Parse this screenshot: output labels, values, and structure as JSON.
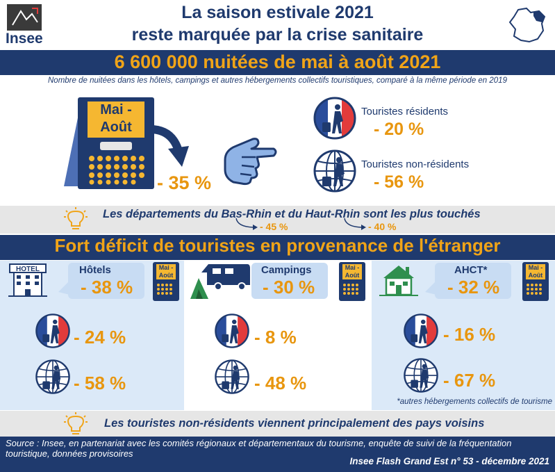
{
  "header": {
    "logo_text": "Insee",
    "title_line1": "La saison estivale 2021",
    "title_line2": "reste marquée par la crise sanitaire"
  },
  "banner": {
    "headline": "6 600 000 nuitées de mai à août 2021",
    "subtitle": "Nombre de nuitées dans les hôtels, campings et autres hébergements collectifs touristiques, comparé à la même période en 2019"
  },
  "overview": {
    "calendar_label_line1": "Mai -",
    "calendar_label_line2": "Août",
    "total_pct": "- 35 %",
    "residents_label": "Touristes résidents",
    "residents_pct": "- 20 %",
    "nonresidents_label": "Touristes non-résidents",
    "nonresidents_pct": "- 56 %"
  },
  "departments_band": {
    "text": "Les départements du Bas-Rhin et du Haut-Rhin sont les plus touchés",
    "bas_rhin_pct": "- 45 %",
    "haut_rhin_pct": "- 40 %"
  },
  "section": {
    "title": "Fort déficit de touristes en provenance de l'étranger"
  },
  "small_calendar": {
    "line1": "Mai -",
    "line2": "Août"
  },
  "panels": [
    {
      "title": "Hôtels",
      "icon_text": "HOTEL",
      "total_pct": "- 38 %",
      "residents_pct": "- 24 %",
      "nonresidents_pct": "- 58 %"
    },
    {
      "title": "Campings",
      "total_pct": "- 30 %",
      "residents_pct": "- 8 %",
      "nonresidents_pct": "- 48 %"
    },
    {
      "title": "AHCT*",
      "total_pct": "- 32 %",
      "residents_pct": "- 16 %",
      "nonresidents_pct": "- 67 %"
    }
  ],
  "footnote": "*autres hébergements collectifs de tourisme",
  "neighbours_band": {
    "text": "Les touristes non-résidents viennent principalement des pays voisins"
  },
  "footer": {
    "source": "Source : Insee, en partenariat avec les comités régionaux et départementaux du tourisme, enquête de suivi de la fréquentation touristique, données provisoires",
    "reference": "Insee Flash Grand Est n° 53 - décembre 2021"
  },
  "colors": {
    "navy": "#1f3a6e",
    "orange": "#e8960f",
    "light_blue": "#c8dcf3",
    "panel_blue": "#dbe9f8",
    "gray_band": "#e6e6e6"
  }
}
